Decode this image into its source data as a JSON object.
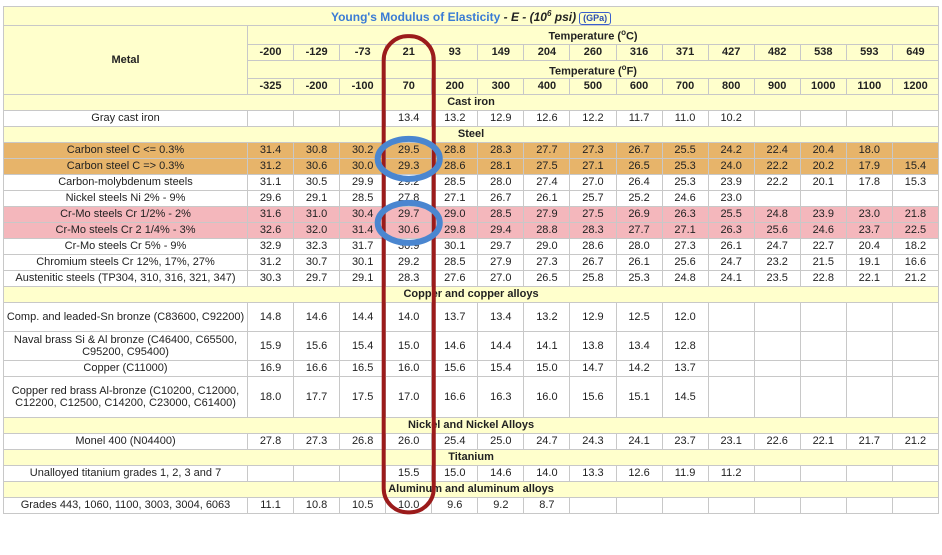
{
  "title": {
    "main": "Young's Modulus of Elasticity",
    "formula_prefix": " - E - (10",
    "exponent": "6",
    "formula_suffix": " psi)",
    "gpa_button": "(GPa)"
  },
  "header": {
    "metal_label": "Metal",
    "temp_c_label_prefix": "Temperature (",
    "temp_c_sup": "o",
    "temp_c_label_suffix": "C)",
    "temp_f_label_prefix": "Temperature (",
    "temp_f_sup": "o",
    "temp_f_label_suffix": "F)",
    "temps_c": [
      "-200",
      "-129",
      "-73",
      "21",
      "93",
      "149",
      "204",
      "260",
      "316",
      "371",
      "427",
      "482",
      "538",
      "593",
      "649"
    ],
    "temps_f": [
      "-325",
      "-200",
      "-100",
      "70",
      "200",
      "300",
      "400",
      "500",
      "600",
      "700",
      "800",
      "900",
      "1000",
      "1100",
      "1200"
    ]
  },
  "sections": [
    {
      "title": "Cast iron",
      "rows": [
        {
          "metal": "Gray cast iron",
          "values": [
            "",
            "",
            "",
            "13.4",
            "13.2",
            "12.9",
            "12.6",
            "12.2",
            "11.7",
            "11.0",
            "10.2",
            "",
            "",
            "",
            ""
          ]
        }
      ]
    },
    {
      "title": "Steel",
      "rows": [
        {
          "metal": "Carbon steel C <= 0.3%",
          "highlight": "orange",
          "values": [
            "31.4",
            "30.8",
            "30.2",
            "29.5",
            "28.8",
            "28.3",
            "27.7",
            "27.3",
            "26.7",
            "25.5",
            "24.2",
            "22.4",
            "20.4",
            "18.0",
            ""
          ]
        },
        {
          "metal": "Carbon steel C => 0.3%",
          "highlight": "orange",
          "values": [
            "31.2",
            "30.6",
            "30.0",
            "29.3",
            "28.6",
            "28.1",
            "27.5",
            "27.1",
            "26.5",
            "25.3",
            "24.0",
            "22.2",
            "20.2",
            "17.9",
            "15.4"
          ]
        },
        {
          "metal": "Carbon-molybdenum steels",
          "values": [
            "31.1",
            "30.5",
            "29.9",
            "29.2",
            "28.5",
            "28.0",
            "27.4",
            "27.0",
            "26.4",
            "25.3",
            "23.9",
            "22.2",
            "20.1",
            "17.8",
            "15.3"
          ]
        },
        {
          "metal": "Nickel steels Ni 2% - 9%",
          "values": [
            "29.6",
            "29.1",
            "28.5",
            "27.8",
            "27.1",
            "26.7",
            "26.1",
            "25.7",
            "25.2",
            "24.6",
            "23.0",
            "",
            "",
            "",
            ""
          ]
        },
        {
          "metal": "Cr-Mo steels Cr 1/2% - 2%",
          "highlight": "pink",
          "values": [
            "31.6",
            "31.0",
            "30.4",
            "29.7",
            "29.0",
            "28.5",
            "27.9",
            "27.5",
            "26.9",
            "26.3",
            "25.5",
            "24.8",
            "23.9",
            "23.0",
            "21.8"
          ]
        },
        {
          "metal": "Cr-Mo steels Cr 2 1/4% - 3%",
          "highlight": "pink",
          "values": [
            "32.6",
            "32.0",
            "31.4",
            "30.6",
            "29.8",
            "29.4",
            "28.8",
            "28.3",
            "27.7",
            "27.1",
            "26.3",
            "25.6",
            "24.6",
            "23.7",
            "22.5"
          ]
        },
        {
          "metal": "Cr-Mo steels Cr 5% - 9%",
          "values": [
            "32.9",
            "32.3",
            "31.7",
            "30.9",
            "30.1",
            "29.7",
            "29.0",
            "28.6",
            "28.0",
            "27.3",
            "26.1",
            "24.7",
            "22.7",
            "20.4",
            "18.2"
          ]
        },
        {
          "metal": "Chromium steels Cr 12%, 17%, 27%",
          "values": [
            "31.2",
            "30.7",
            "30.1",
            "29.2",
            "28.5",
            "27.9",
            "27.3",
            "26.7",
            "26.1",
            "25.6",
            "24.7",
            "23.2",
            "21.5",
            "19.1",
            "16.6"
          ]
        },
        {
          "metal": "Austenitic steels (TP304, 310, 316, 321, 347)",
          "values": [
            "30.3",
            "29.7",
            "29.1",
            "28.3",
            "27.6",
            "27.0",
            "26.5",
            "25.8",
            "25.3",
            "24.8",
            "24.1",
            "23.5",
            "22.8",
            "22.1",
            "21.2"
          ]
        }
      ]
    },
    {
      "title": "Copper and copper alloys",
      "rows": [
        {
          "metal": "Comp. and leaded-Sn bronze (C83600, C92200)",
          "tall": "2",
          "values": [
            "14.8",
            "14.6",
            "14.4",
            "14.0",
            "13.7",
            "13.4",
            "13.2",
            "12.9",
            "12.5",
            "12.0",
            "",
            "",
            "",
            "",
            ""
          ]
        },
        {
          "metal": "Naval brass Si & Al bronze (C46400, C65500, C95200, C95400)",
          "tall": "2",
          "values": [
            "15.9",
            "15.6",
            "15.4",
            "15.0",
            "14.6",
            "14.4",
            "14.1",
            "13.8",
            "13.4",
            "12.8",
            "",
            "",
            "",
            "",
            ""
          ]
        },
        {
          "metal": "Copper (C11000)",
          "values": [
            "16.9",
            "16.6",
            "16.5",
            "16.0",
            "15.6",
            "15.4",
            "15.0",
            "14.7",
            "14.2",
            "13.7",
            "",
            "",
            "",
            "",
            ""
          ]
        },
        {
          "metal": "Copper red brass Al-bronze (C10200, C12000, C12200, C12500, C14200, C23000, C61400)",
          "tall": "3",
          "values": [
            "18.0",
            "17.7",
            "17.5",
            "17.0",
            "16.6",
            "16.3",
            "16.0",
            "15.6",
            "15.1",
            "14.5",
            "",
            "",
            "",
            "",
            ""
          ]
        }
      ]
    },
    {
      "title": "Nickel and Nickel Alloys",
      "rows": [
        {
          "metal": "Monel 400 (N04400)",
          "values": [
            "27.8",
            "27.3",
            "26.8",
            "26.0",
            "25.4",
            "25.0",
            "24.7",
            "24.3",
            "24.1",
            "23.7",
            "23.1",
            "22.6",
            "22.1",
            "21.7",
            "21.2"
          ]
        }
      ]
    },
    {
      "title": "Titanium",
      "rows": [
        {
          "metal": "Unalloyed titanium grades 1, 2, 3 and 7",
          "values": [
            "",
            "",
            "",
            "15.5",
            "15.0",
            "14.6",
            "14.0",
            "13.3",
            "12.6",
            "11.9",
            "11.2",
            "",
            "",
            "",
            ""
          ]
        }
      ]
    },
    {
      "title": "Aluminum and aluminum alloys",
      "rows": [
        {
          "metal": "Grades 443, 1060, 1100, 3003, 3004, 6063",
          "values": [
            "11.1",
            "10.8",
            "10.5",
            "10.0",
            "9.6",
            "9.2",
            "8.7",
            "",
            "",
            "",
            "",
            "",
            "",
            "",
            ""
          ]
        }
      ]
    }
  ],
  "colors": {
    "header_bg": "#ffffcc",
    "orange_highlight": "#e7b46a",
    "pink_highlight": "#f4b7bc",
    "red_outline": "#9b1b1b",
    "blue_circle": "#4a86d0"
  }
}
